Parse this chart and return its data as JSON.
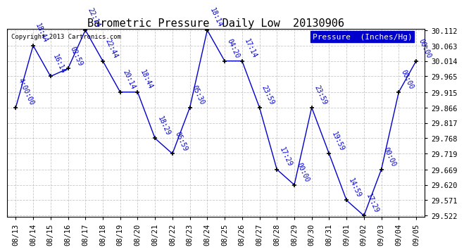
{
  "title": "Barometric Pressure  Daily Low  20130906",
  "copyright": "Copyright 2013 Cartronics.com",
  "legend_label": "Pressure  (Inches/Hg)",
  "background_color": "#ffffff",
  "plot_background": "#ffffff",
  "line_color": "#0000cc",
  "marker_color": "#000000",
  "grid_color": "#bbbbbb",
  "points": [
    {
      "date": "08/13",
      "value": 29.866,
      "time": "4:00:00"
    },
    {
      "date": "08/14",
      "value": 30.063,
      "time": "18:44"
    },
    {
      "date": "08/15",
      "value": 29.965,
      "time": "16:14"
    },
    {
      "date": "08/16",
      "value": 29.99,
      "time": "02:59"
    },
    {
      "date": "08/17",
      "value": 30.112,
      "time": "22:14"
    },
    {
      "date": "08/18",
      "value": 30.014,
      "time": "22:44"
    },
    {
      "date": "08/19",
      "value": 29.915,
      "time": "20:14"
    },
    {
      "date": "08/20",
      "value": 29.915,
      "time": "18:44"
    },
    {
      "date": "08/21",
      "value": 29.768,
      "time": "18:29"
    },
    {
      "date": "08/22",
      "value": 29.719,
      "time": "05:59"
    },
    {
      "date": "08/23",
      "value": 29.866,
      "time": "05:30"
    },
    {
      "date": "08/24",
      "value": 30.112,
      "time": "18:14"
    },
    {
      "date": "08/25",
      "value": 30.014,
      "time": "04:20"
    },
    {
      "date": "08/26",
      "value": 30.014,
      "time": "17:14"
    },
    {
      "date": "08/27",
      "value": 29.866,
      "time": "23:59"
    },
    {
      "date": "08/28",
      "value": 29.669,
      "time": "17:29"
    },
    {
      "date": "08/29",
      "value": 29.62,
      "time": "00:00"
    },
    {
      "date": "08/30",
      "value": 29.866,
      "time": "23:59"
    },
    {
      "date": "08/31",
      "value": 29.719,
      "time": "19:59"
    },
    {
      "date": "09/01",
      "value": 29.571,
      "time": "14:59"
    },
    {
      "date": "09/02",
      "value": 29.522,
      "time": "17:29"
    },
    {
      "date": "09/03",
      "value": 29.669,
      "time": "00:00"
    },
    {
      "date": "09/04",
      "value": 29.915,
      "time": "00:00"
    },
    {
      "date": "09/05",
      "value": 30.014,
      "time": "00:00"
    }
  ],
  "ylim_min": 29.522,
  "ylim_max": 30.112,
  "yticks": [
    29.522,
    29.571,
    29.62,
    29.669,
    29.719,
    29.768,
    29.817,
    29.866,
    29.915,
    29.965,
    30.014,
    30.063,
    30.112
  ],
  "title_fontsize": 11,
  "tick_fontsize": 7.5,
  "annot_fontsize": 7,
  "copyright_fontsize": 6.5,
  "legend_fontsize": 8
}
